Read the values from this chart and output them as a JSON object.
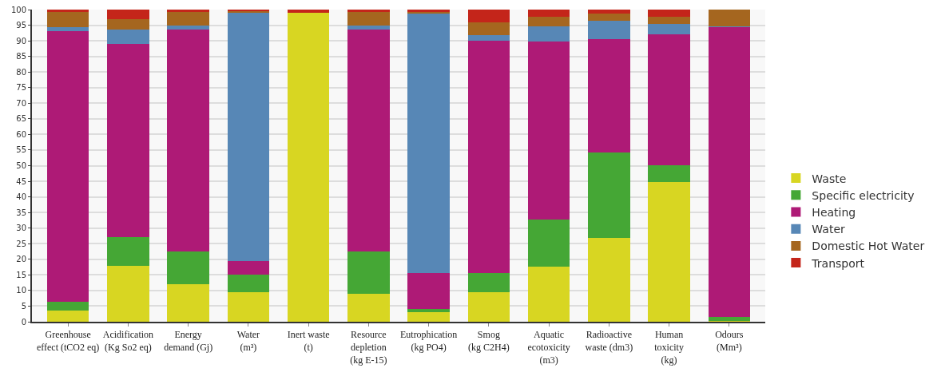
{
  "chart_data": {
    "type": "bar",
    "stacked": true,
    "categories": [
      "Greenhouse\neffect (tCO2 eq)",
      "Acidification\n(Kg So2 eq)",
      "Energy\ndemand (Gj)",
      "Water\n(m³)",
      "Inert waste\n(t)",
      "Resource\ndepletion\n(kg E-15)",
      "Eutrophication\n(kg PO4)",
      "Smog\n(kg C2H4)",
      "Aquatic\necotoxicity\n(m3)",
      "Radioactive\nwaste (dm3)",
      "Human\ntoxicity\n(kg)",
      "Odours\n(Mm³)"
    ],
    "series": [
      {
        "name": "Waste",
        "color": "#d8d622",
        "values": [
          3.5,
          18,
          12,
          9.5,
          99,
          9,
          3,
          9.5,
          17.7,
          26.9,
          44.8,
          0.3
        ]
      },
      {
        "name": "Specific electricity",
        "color": "#45a735",
        "values": [
          3,
          9,
          10.5,
          5.5,
          0,
          13.5,
          1.2,
          6,
          15,
          27.2,
          5.3,
          1.2
        ]
      },
      {
        "name": "Heating",
        "color": "#ae1a76",
        "values": [
          86.5,
          62,
          71,
          4.5,
          0,
          71,
          11.5,
          74.5,
          57.1,
          36.4,
          42.1,
          92.8
        ]
      },
      {
        "name": "Water",
        "color": "#5787b6",
        "values": [
          1.5,
          4.5,
          1.5,
          79.5,
          0,
          1.5,
          82.9,
          1.8,
          4.8,
          5.8,
          3.1,
          0.4
        ]
      },
      {
        "name": "Domestic Hot Water",
        "color": "#a5661f",
        "values": [
          4.7,
          3.5,
          4.2,
          0.6,
          0,
          4.3,
          0.6,
          4.2,
          3,
          2.3,
          2.5,
          5.3
        ]
      },
      {
        "name": "Transport",
        "color": "#c4251a",
        "values": [
          0.8,
          3,
          0.8,
          0.4,
          1,
          0.7,
          0.8,
          4,
          2.4,
          1.4,
          2.2,
          0
        ]
      }
    ],
    "ylim": [
      0,
      100
    ],
    "yticks": [
      0,
      5,
      10,
      15,
      20,
      25,
      30,
      35,
      40,
      45,
      50,
      55,
      60,
      65,
      70,
      75,
      80,
      85,
      90,
      95,
      100
    ],
    "grid": "y",
    "legend": "right"
  }
}
